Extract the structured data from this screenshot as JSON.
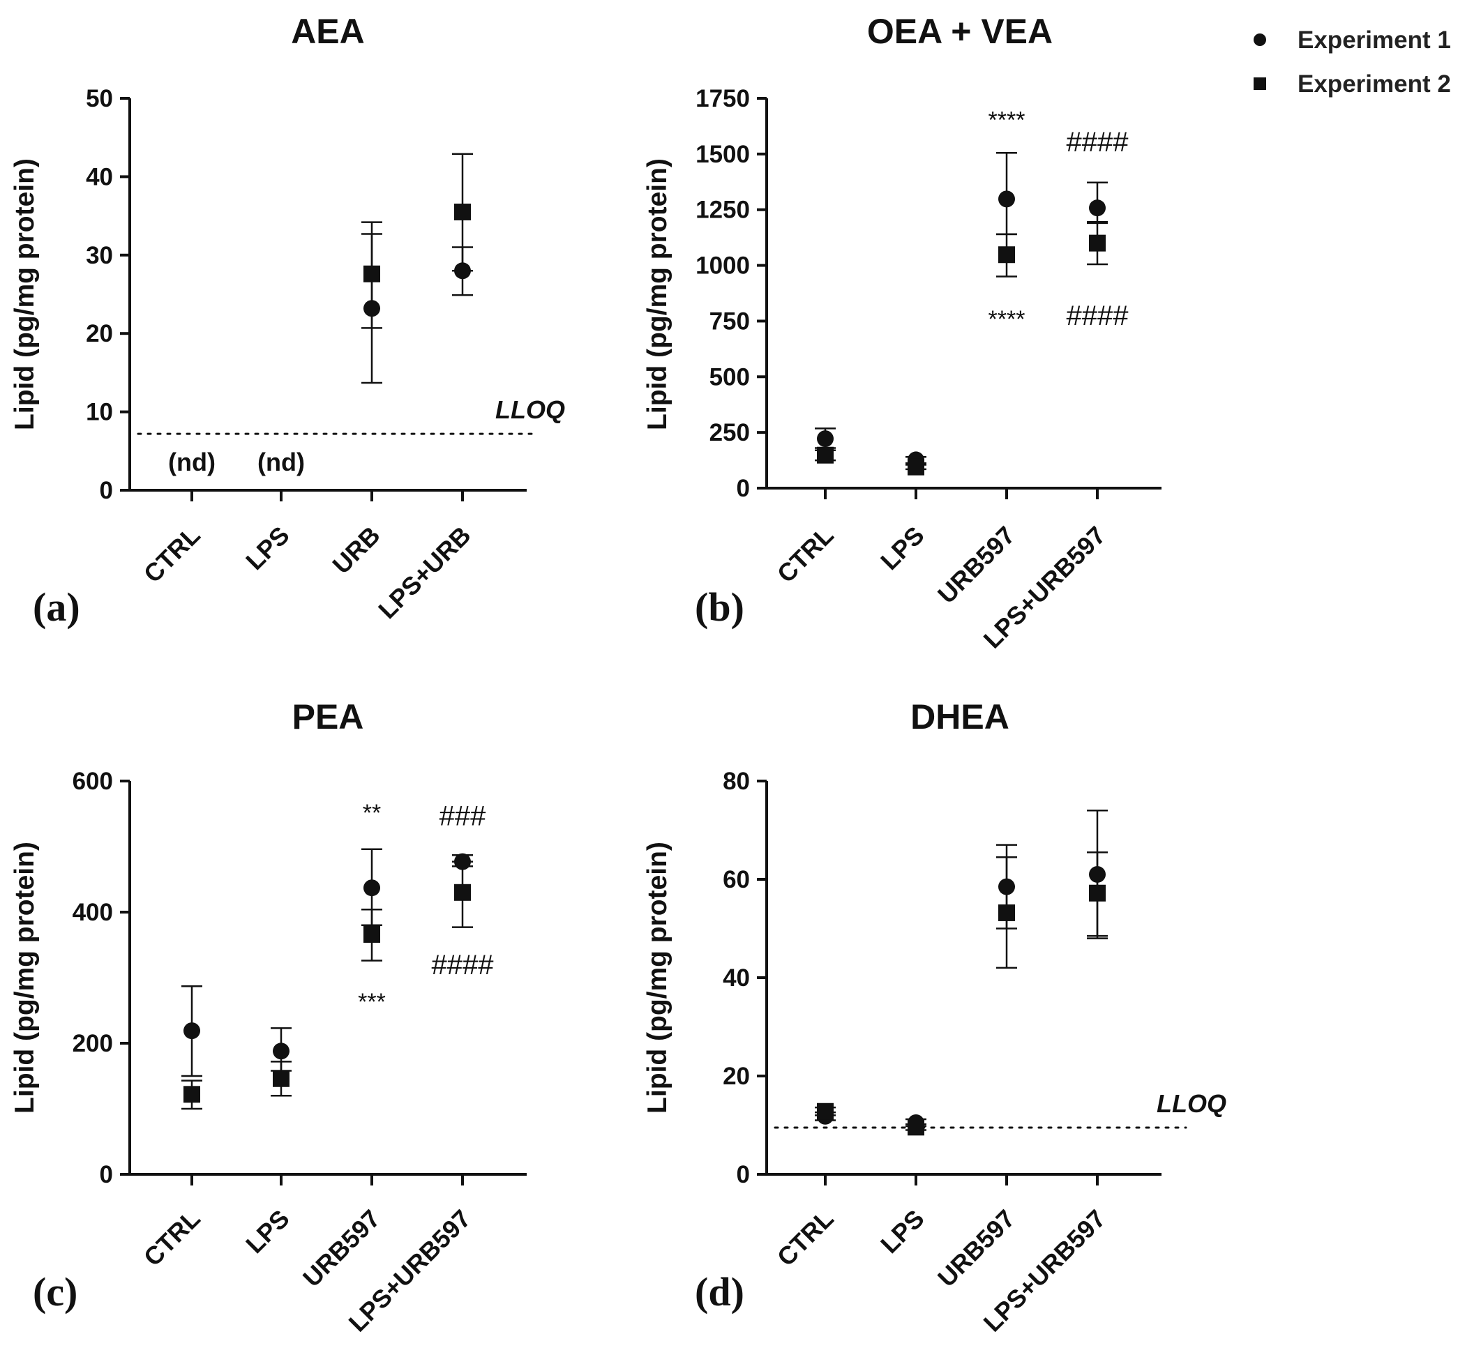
{
  "legend": [
    {
      "label": "Experiment 1",
      "marker": "circle"
    },
    {
      "label": "Experiment 2",
      "marker": "square"
    }
  ],
  "colors": {
    "marker": "#111111",
    "axis": "#111111"
  },
  "chart_data": [
    {
      "type": "scatter",
      "panel_label": "(a)",
      "title": "AEA",
      "ylabel": "Lipid (pg/mg protein)",
      "categories": [
        "CTRL",
        "LPS",
        "URB",
        "LPS+URB"
      ],
      "ylim": [
        0,
        50
      ],
      "yticks": [
        "0",
        "10",
        "20",
        "30",
        "40",
        "50"
      ],
      "lloq": {
        "value": 7.2,
        "label": "LLOQ"
      },
      "nd_labels": [
        {
          "category": "CTRL",
          "text": "(nd)"
        },
        {
          "category": "LPS",
          "text": "(nd)"
        }
      ],
      "series": [
        {
          "name": "Experiment 1",
          "marker": "circle",
          "values": [
            null,
            null,
            23.2,
            28.0
          ],
          "err_low": [
            null,
            null,
            13.7,
            24.9
          ],
          "err_high": [
            null,
            null,
            32.7,
            31.0
          ]
        },
        {
          "name": "Experiment 2",
          "marker": "square",
          "values": [
            null,
            null,
            27.6,
            35.5
          ],
          "err_low": [
            null,
            null,
            20.7,
            28.0
          ],
          "err_high": [
            null,
            null,
            34.2,
            42.9
          ]
        }
      ],
      "annotations": []
    },
    {
      "type": "scatter",
      "panel_label": "(b)",
      "title": "OEA + VEA",
      "ylabel": "Lipid (pg/mg protein)",
      "categories": [
        "CTRL",
        "LPS",
        "URB597",
        "LPS+URB597"
      ],
      "ylim": [
        0,
        1750
      ],
      "yticks": [
        "0",
        "250",
        "500",
        "750",
        "1000",
        "1250",
        "1500",
        "1750"
      ],
      "series": [
        {
          "name": "Experiment 1",
          "marker": "circle",
          "values": [
            222,
            127,
            1298,
            1258
          ],
          "err_low": [
            180,
            112,
            1140,
            1190
          ],
          "err_high": [
            268,
            140,
            1505,
            1372
          ]
        },
        {
          "name": "Experiment 2",
          "marker": "square",
          "values": [
            148,
            95,
            1048,
            1100
          ],
          "err_low": [
            125,
            85,
            950,
            1005
          ],
          "err_high": [
            170,
            105,
            1140,
            1195
          ]
        }
      ],
      "annotations": [
        {
          "text": "****",
          "category": "URB597",
          "y": 1655,
          "kind": "star"
        },
        {
          "text": "####",
          "category": "LPS+URB597",
          "y": 1550,
          "kind": "hash"
        },
        {
          "text": "****",
          "category": "URB597",
          "y": 760,
          "kind": "star"
        },
        {
          "text": "####",
          "category": "LPS+URB597",
          "y": 770,
          "kind": "hash"
        }
      ]
    },
    {
      "type": "scatter",
      "panel_label": "(c)",
      "title": "PEA",
      "ylabel": "Lipid (pg/mg protein)",
      "categories": [
        "CTRL",
        "LPS",
        "URB597",
        "LPS+URB597"
      ],
      "ylim": [
        0,
        600
      ],
      "yticks": [
        "0",
        "200",
        "400",
        "600"
      ],
      "series": [
        {
          "name": "Experiment 1",
          "marker": "circle",
          "values": [
            219,
            188,
            437,
            477
          ],
          "err_low": [
            150,
            158,
            380,
            470
          ],
          "err_high": [
            287,
            223,
            496,
            487
          ]
        },
        {
          "name": "Experiment 2",
          "marker": "square",
          "values": [
            122,
            146,
            366,
            430
          ],
          "err_low": [
            100,
            120,
            326,
            377
          ],
          "err_high": [
            143,
            172,
            404,
            477
          ]
        }
      ],
      "annotations": [
        {
          "text": "**",
          "category": "URB597",
          "y": 552,
          "kind": "star"
        },
        {
          "text": "###",
          "category": "LPS+URB597",
          "y": 545,
          "kind": "hash"
        },
        {
          "text": "***",
          "category": "URB597",
          "y": 264,
          "kind": "star"
        },
        {
          "text": "####",
          "category": "LPS+URB597",
          "y": 318,
          "kind": "hash"
        }
      ]
    },
    {
      "type": "scatter",
      "panel_label": "(d)",
      "title": "DHEA",
      "ylabel": "Lipid (pg/mg protein)",
      "categories": [
        "CTRL",
        "LPS",
        "URB597",
        "LPS+URB597"
      ],
      "ylim": [
        0,
        80
      ],
      "yticks": [
        "0",
        "20",
        "40",
        "60",
        "80"
      ],
      "lloq": {
        "value": 9.5,
        "label": "LLOQ"
      },
      "series": [
        {
          "name": "Experiment 1",
          "marker": "circle",
          "values": [
            11.8,
            10.5,
            58.5,
            61.0
          ],
          "err_low": [
            11.0,
            9.8,
            50.0,
            48.0
          ],
          "err_high": [
            12.6,
            11.2,
            67.0,
            74.0
          ]
        },
        {
          "name": "Experiment 2",
          "marker": "square",
          "values": [
            12.8,
            9.6,
            53.2,
            57.2
          ],
          "err_low": [
            12.0,
            9.0,
            42.0,
            48.5
          ],
          "err_high": [
            13.6,
            10.2,
            64.5,
            65.5
          ]
        }
      ],
      "annotations": []
    }
  ]
}
